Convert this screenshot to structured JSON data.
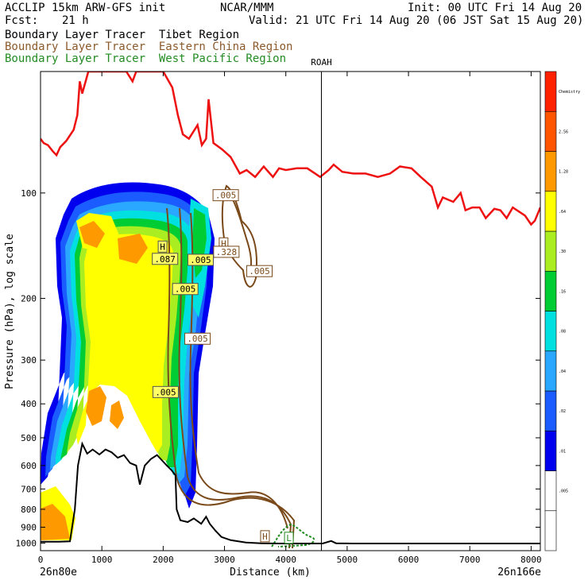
{
  "header": {
    "model": "ACCLIP 15km ARW-GFS init",
    "org": "NCAR/MMM",
    "init": "Init: 00 UTC Fri 14 Aug 20",
    "fcst_label": "Fcst:",
    "fcst_value": "21 h",
    "valid": "Valid: 21 UTC Fri 14 Aug 20 (06 JST Sat 15 Aug 20)",
    "tracer_tibet": "Boundary Layer Tracer  Tibet Region",
    "tracer_china": "Boundary Layer Tracer  Eastern China Region",
    "tracer_wpac": "Boundary Layer Tracer  West Pacific Region"
  },
  "colors": {
    "tropopause": "#ee1111",
    "terrain": "#000000",
    "china": "#7a4a1a",
    "wpac": "#228b22"
  },
  "chart_data": {
    "type": "cross-section",
    "xlabel": "Distance (km)",
    "ylabel": "Pressure (hPa), log scale",
    "xlim": [
      0,
      8150
    ],
    "ylim": [
      1050,
      45
    ],
    "x_ticks": [
      "0",
      "1000",
      "2000",
      "3000",
      "4000",
      "5000",
      "6000",
      "7000",
      "8000"
    ],
    "y_ticks": [
      "100",
      "200",
      "300",
      "400",
      "500",
      "600",
      "700",
      "800",
      "900",
      "1000"
    ],
    "left_end": "26n80e",
    "right_end": "26n166e",
    "marker_label": "ROAH",
    "marker_x": 4580,
    "colorbar": [
      {
        "label": "",
        "color": "#ffffff"
      },
      {
        "label": ".005",
        "color": "#ffffff"
      },
      {
        "label": ".01",
        "color": "#0000ee"
      },
      {
        "label": ".02",
        "color": "#1a5cff"
      },
      {
        "label": ".04",
        "color": "#2aa7ff"
      },
      {
        "label": ".08",
        "color": "#00e0e0"
      },
      {
        "label": ".16",
        "color": "#00cc33"
      },
      {
        "label": ".30",
        "color": "#aaee22"
      },
      {
        "label": ".64",
        "color": "#ffff00"
      },
      {
        "label": "1.28",
        "color": "#ff9900"
      },
      {
        "label": "2.56",
        "color": "#ff5500"
      },
      {
        "label": "Chemistry",
        "color": "#ff2200"
      }
    ],
    "contour_labels": [
      {
        "text": ".005",
        "x": 3020,
        "p": 102,
        "series": "china"
      },
      {
        "text": "H",
        "x": 2985,
        "p": 140,
        "series": "china"
      },
      {
        "text": ".328",
        "x": 3030,
        "p": 148,
        "series": "china"
      },
      {
        "text": ".005",
        "x": 3570,
        "p": 168,
        "series": "china"
      },
      {
        "text": "H",
        "x": 1990,
        "p": 143,
        "series": "tibet"
      },
      {
        "text": ".087",
        "x": 2030,
        "p": 155,
        "series": "tibet"
      },
      {
        "text": ".005",
        "x": 2610,
        "p": 156,
        "series": "tibet"
      },
      {
        "text": ".005",
        "x": 2360,
        "p": 189,
        "series": "tibet"
      },
      {
        "text": ".005",
        "x": 2560,
        "p": 262,
        "series": "china"
      },
      {
        "text": ".005",
        "x": 2040,
        "p": 372,
        "series": "tibet"
      },
      {
        "text": "H",
        "x": 3660,
        "p": 960,
        "series": "china"
      },
      {
        "text": "L",
        "x": 4050,
        "p": 970,
        "series": "wpac"
      }
    ],
    "tropopause": [
      [
        0,
        70
      ],
      [
        50,
        72
      ],
      [
        120,
        73
      ],
      [
        200,
        76
      ],
      [
        260,
        78
      ],
      [
        320,
        74
      ],
      [
        420,
        71
      ],
      [
        540,
        66
      ],
      [
        600,
        60
      ],
      [
        640,
        48
      ],
      [
        680,
        52
      ],
      [
        780,
        45
      ],
      [
        950,
        45
      ],
      [
        1400,
        45
      ],
      [
        1500,
        48
      ],
      [
        1560,
        45
      ],
      [
        2000,
        45
      ],
      [
        2150,
        50
      ],
      [
        2240,
        60
      ],
      [
        2320,
        68
      ],
      [
        2420,
        70
      ],
      [
        2560,
        64
      ],
      [
        2630,
        73
      ],
      [
        2700,
        70
      ],
      [
        2740,
        54
      ],
      [
        2820,
        72
      ],
      [
        2960,
        75
      ],
      [
        3100,
        79
      ],
      [
        3250,
        88
      ],
      [
        3360,
        86
      ],
      [
        3500,
        90
      ],
      [
        3640,
        84
      ],
      [
        3790,
        90
      ],
      [
        3890,
        85
      ],
      [
        4000,
        86
      ],
      [
        4180,
        85
      ],
      [
        4350,
        85
      ],
      [
        4560,
        90
      ],
      [
        4700,
        86
      ],
      [
        4780,
        83
      ],
      [
        4920,
        87
      ],
      [
        5100,
        88
      ],
      [
        5300,
        88
      ],
      [
        5500,
        90
      ],
      [
        5700,
        88
      ],
      [
        5860,
        84
      ],
      [
        6050,
        85
      ],
      [
        6200,
        90
      ],
      [
        6380,
        96
      ],
      [
        6480,
        110
      ],
      [
        6560,
        103
      ],
      [
        6730,
        106
      ],
      [
        6850,
        100
      ],
      [
        6930,
        112
      ],
      [
        7040,
        110
      ],
      [
        7160,
        110
      ],
      [
        7260,
        118
      ],
      [
        7400,
        111
      ],
      [
        7500,
        112
      ],
      [
        7600,
        118
      ],
      [
        7700,
        110
      ],
      [
        7900,
        116
      ],
      [
        8000,
        123
      ],
      [
        8060,
        120
      ],
      [
        8150,
        110
      ]
    ],
    "terrain": [
      [
        0,
        990
      ],
      [
        100,
        990
      ],
      [
        300,
        990
      ],
      [
        480,
        988
      ],
      [
        560,
        800
      ],
      [
        610,
        600
      ],
      [
        680,
        520
      ],
      [
        760,
        555
      ],
      [
        850,
        540
      ],
      [
        960,
        558
      ],
      [
        1060,
        540
      ],
      [
        1160,
        550
      ],
      [
        1260,
        570
      ],
      [
        1360,
        560
      ],
      [
        1460,
        590
      ],
      [
        1560,
        600
      ],
      [
        1620,
        680
      ],
      [
        1700,
        600
      ],
      [
        1800,
        575
      ],
      [
        1900,
        560
      ],
      [
        2000,
        585
      ],
      [
        2060,
        600
      ],
      [
        2140,
        620
      ],
      [
        2200,
        640
      ],
      [
        2220,
        800
      ],
      [
        2280,
        860
      ],
      [
        2400,
        870
      ],
      [
        2500,
        850
      ],
      [
        2620,
        880
      ],
      [
        2700,
        840
      ],
      [
        2760,
        880
      ],
      [
        2850,
        920
      ],
      [
        2950,
        960
      ],
      [
        3100,
        980
      ],
      [
        3350,
        995
      ],
      [
        3600,
        1000
      ],
      [
        3900,
        1002
      ],
      [
        4600,
        1002
      ],
      [
        4740,
        985
      ],
      [
        4820,
        1000
      ],
      [
        5100,
        1002
      ],
      [
        8150,
        1002
      ]
    ]
  }
}
